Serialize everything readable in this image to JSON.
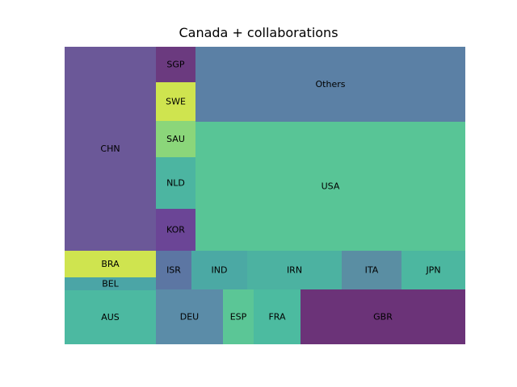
{
  "chart_data": {
    "type": "treemap",
    "title": "Canada + collaborations",
    "tiles": [
      {
        "label": "CHN",
        "color": "#6b5898"
      },
      {
        "label": "BRA",
        "color": "#cfe44f"
      },
      {
        "label": "BEL",
        "color": "#4ba5a6"
      },
      {
        "label": "AUS",
        "color": "#4cb9a1"
      },
      {
        "label": "SGP",
        "color": "#6b3a7f"
      },
      {
        "label": "SWE",
        "color": "#cfe44f"
      },
      {
        "label": "SAU",
        "color": "#8bd67a"
      },
      {
        "label": "NLD",
        "color": "#4cb5a1"
      },
      {
        "label": "KOR",
        "color": "#6b4596"
      },
      {
        "label": "Others",
        "color": "#5b80a5"
      },
      {
        "label": "USA",
        "color": "#58c596"
      },
      {
        "label": "ISR",
        "color": "#5c76a3"
      },
      {
        "label": "IND",
        "color": "#4ba9a4"
      },
      {
        "label": "IRN",
        "color": "#4cb2a1"
      },
      {
        "label": "ITA",
        "color": "#5a8ea3"
      },
      {
        "label": "JPN",
        "color": "#4cb7a0"
      },
      {
        "label": "DEU",
        "color": "#5b8ca8"
      },
      {
        "label": "ESP",
        "color": "#5bc696"
      },
      {
        "label": "FRA",
        "color": "#4cbba0"
      },
      {
        "label": "GBR",
        "color": "#6b3378"
      }
    ]
  }
}
